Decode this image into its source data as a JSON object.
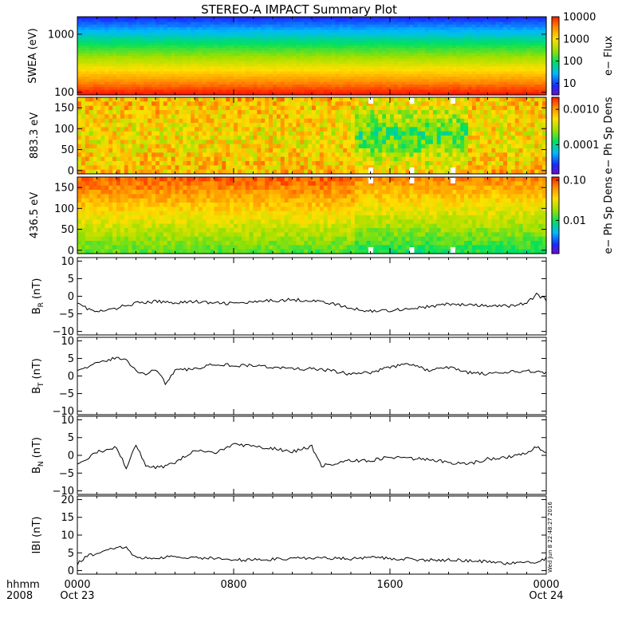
{
  "chart_data": {
    "title": "STEREO-A IMPACT Summary Plot",
    "timestamp": "Wed Jun  8 22:48:27 2016",
    "x_axis": {
      "row_label": "hhmm",
      "year_label": "2008",
      "ticks": [
        {
          "hours": 0,
          "time": "0000",
          "date": "Oct 23"
        },
        {
          "hours": 8,
          "time": "0800",
          "date": ""
        },
        {
          "hours": 16,
          "time": "1600",
          "date": ""
        },
        {
          "hours": 24,
          "time": "0000",
          "date": "Oct 24"
        }
      ],
      "range_hours": [
        0,
        24
      ]
    },
    "spectrograms": [
      {
        "id": "swea",
        "type": "heatmap",
        "ylabel": "SWEA (eV)",
        "yscale": "log",
        "ylim": [
          90,
          2000
        ],
        "yticks": [
          {
            "v": 100,
            "label": "100"
          },
          {
            "v": 1000,
            "label": "1000"
          }
        ],
        "colorbar": {
          "label": "e− Flux",
          "scale": "log",
          "range": [
            3,
            10000
          ],
          "ticks": [
            {
              "v": 10,
              "label": "10"
            },
            {
              "v": 100,
              "label": "100"
            },
            {
              "v": 1000,
              "label": "1000"
            },
            {
              "v": 10000,
              "label": "10000"
            }
          ]
        }
      },
      {
        "id": "pa883",
        "type": "heatmap",
        "ylabel": "883.3 eV",
        "yscale": "linear",
        "ylim": [
          -8,
          175
        ],
        "yticks": [
          {
            "v": 0,
            "label": "0"
          },
          {
            "v": 50,
            "label": "50"
          },
          {
            "v": 100,
            "label": "100"
          },
          {
            "v": 150,
            "label": "150"
          }
        ],
        "colorbar": {
          "label": "e− Ph Sp Dens",
          "scale": "log",
          "range": [
            1.5e-05,
            0.0022
          ],
          "ticks": [
            {
              "v": 0.0001,
              "label": "0.0001"
            },
            {
              "v": 0.001,
              "label": "0.0010"
            }
          ]
        }
      },
      {
        "id": "pa436",
        "type": "heatmap",
        "ylabel": "436.5 eV",
        "yscale": "linear",
        "ylim": [
          -8,
          175
        ],
        "yticks": [
          {
            "v": 0,
            "label": "0"
          },
          {
            "v": 50,
            "label": "50"
          },
          {
            "v": 100,
            "label": "100"
          },
          {
            "v": 150,
            "label": "150"
          }
        ],
        "colorbar": {
          "label": "e− Ph Sp Dens",
          "scale": "log",
          "range": [
            0.0015,
            0.12
          ],
          "ticks": [
            {
              "v": 0.01,
              "label": "0.01"
            },
            {
              "v": 0.1,
              "label": "0.10"
            }
          ]
        }
      }
    ],
    "line_panels": [
      {
        "id": "br",
        "type": "line",
        "ylabel_main": "B",
        "ylabel_sub": "R",
        "ylabel_unit": "(nT)",
        "ylim": [
          -11,
          11
        ],
        "yticks": [
          {
            "v": -10,
            "label": "−10"
          },
          {
            "v": -5,
            "label": "−5"
          },
          {
            "v": 0,
            "label": "0"
          },
          {
            "v": 5,
            "label": "5"
          },
          {
            "v": 10,
            "label": "10"
          }
        ],
        "x": [
          0,
          0.5,
          1,
          1.5,
          2,
          2.5,
          3,
          3.5,
          4,
          5,
          6,
          7,
          8,
          9,
          10,
          11,
          12,
          13,
          14,
          15,
          16,
          17,
          18,
          19,
          20,
          21,
          22,
          23,
          23.5,
          24
        ],
        "y": [
          -1.5,
          -3.5,
          -4.5,
          -4.0,
          -3.5,
          -2.5,
          -2.0,
          -1.8,
          -1.5,
          -1.8,
          -1.5,
          -2.0,
          -2.0,
          -1.8,
          -1.2,
          -1.0,
          -1.2,
          -2.0,
          -3.5,
          -4.2,
          -4.0,
          -3.5,
          -3.0,
          -2.2,
          -2.5,
          -2.8,
          -2.8,
          -2.0,
          0.5,
          -1.0
        ]
      },
      {
        "id": "bt",
        "type": "line",
        "ylabel_main": "B",
        "ylabel_sub": "T",
        "ylabel_unit": "(nT)",
        "ylim": [
          -11,
          11
        ],
        "yticks": [
          {
            "v": -10,
            "label": "−10"
          },
          {
            "v": -5,
            "label": "−5"
          },
          {
            "v": 0,
            "label": "0"
          },
          {
            "v": 5,
            "label": "5"
          },
          {
            "v": 10,
            "label": "10"
          }
        ],
        "x": [
          0,
          0.5,
          1,
          1.5,
          2,
          2.5,
          3,
          3.5,
          4,
          4.5,
          5,
          6,
          7,
          8,
          9,
          10,
          11,
          12,
          13,
          14,
          15,
          16,
          17,
          18,
          19,
          20,
          21,
          22,
          23,
          24
        ],
        "y": [
          2.0,
          2.5,
          3.5,
          4.5,
          5.2,
          4.5,
          1.5,
          0.5,
          2.0,
          -2.0,
          1.5,
          2.0,
          3.5,
          3.0,
          3.0,
          2.5,
          2.0,
          2.0,
          1.5,
          0.5,
          1.0,
          2.5,
          3.5,
          1.5,
          2.5,
          1.0,
          0.5,
          1.0,
          1.5,
          1.0
        ]
      },
      {
        "id": "bn",
        "type": "line",
        "ylabel_main": "B",
        "ylabel_sub": "N",
        "ylabel_unit": "(nT)",
        "ylim": [
          -11,
          11
        ],
        "yticks": [
          {
            "v": -10,
            "label": "−10"
          },
          {
            "v": -5,
            "label": "−5"
          },
          {
            "v": 0,
            "label": "0"
          },
          {
            "v": 5,
            "label": "5"
          },
          {
            "v": 10,
            "label": "10"
          }
        ],
        "x": [
          0,
          0.5,
          1,
          1.5,
          2,
          2.5,
          3,
          3.5,
          4,
          4.5,
          5,
          6,
          7,
          8,
          9,
          10,
          11,
          12,
          12.5,
          13,
          14,
          15,
          16,
          17,
          18,
          19,
          20,
          21,
          22,
          23,
          23.5,
          24
        ],
        "y": [
          -2.0,
          -1.0,
          1.0,
          1.5,
          2.5,
          -3.5,
          3.0,
          -3.0,
          -3.5,
          -3.0,
          -2.0,
          1.5,
          0.5,
          3.0,
          2.5,
          2.0,
          1.0,
          2.5,
          -3.0,
          -2.5,
          -1.5,
          -1.5,
          -0.5,
          -1.0,
          -1.0,
          -2.0,
          -2.5,
          -1.0,
          -0.5,
          0.5,
          2.5,
          1.0
        ]
      },
      {
        "id": "bmag",
        "type": "line",
        "ylabel_main": "IBI",
        "ylabel_sub": "",
        "ylabel_unit": "(nT)",
        "ylim": [
          -1,
          21
        ],
        "yticks": [
          {
            "v": 0,
            "label": "0"
          },
          {
            "v": 5,
            "label": "5"
          },
          {
            "v": 10,
            "label": "10"
          },
          {
            "v": 15,
            "label": "15"
          },
          {
            "v": 20,
            "label": "20"
          }
        ],
        "x": [
          0,
          0.5,
          1,
          1.5,
          2,
          2.5,
          3,
          3.5,
          4,
          5,
          6,
          7,
          8,
          9,
          10,
          11,
          12,
          13,
          14,
          15,
          16,
          17,
          18,
          19,
          20,
          21,
          22,
          23,
          23.5,
          24
        ],
        "y": [
          2.0,
          4.0,
          5.0,
          6.0,
          6.5,
          6.5,
          3.5,
          3.8,
          3.5,
          4.0,
          3.5,
          3.5,
          3.0,
          3.0,
          3.2,
          3.5,
          3.5,
          3.5,
          3.3,
          3.8,
          3.5,
          3.2,
          3.0,
          3.0,
          2.8,
          2.5,
          2.0,
          2.5,
          2.0,
          3.5
        ]
      }
    ]
  }
}
